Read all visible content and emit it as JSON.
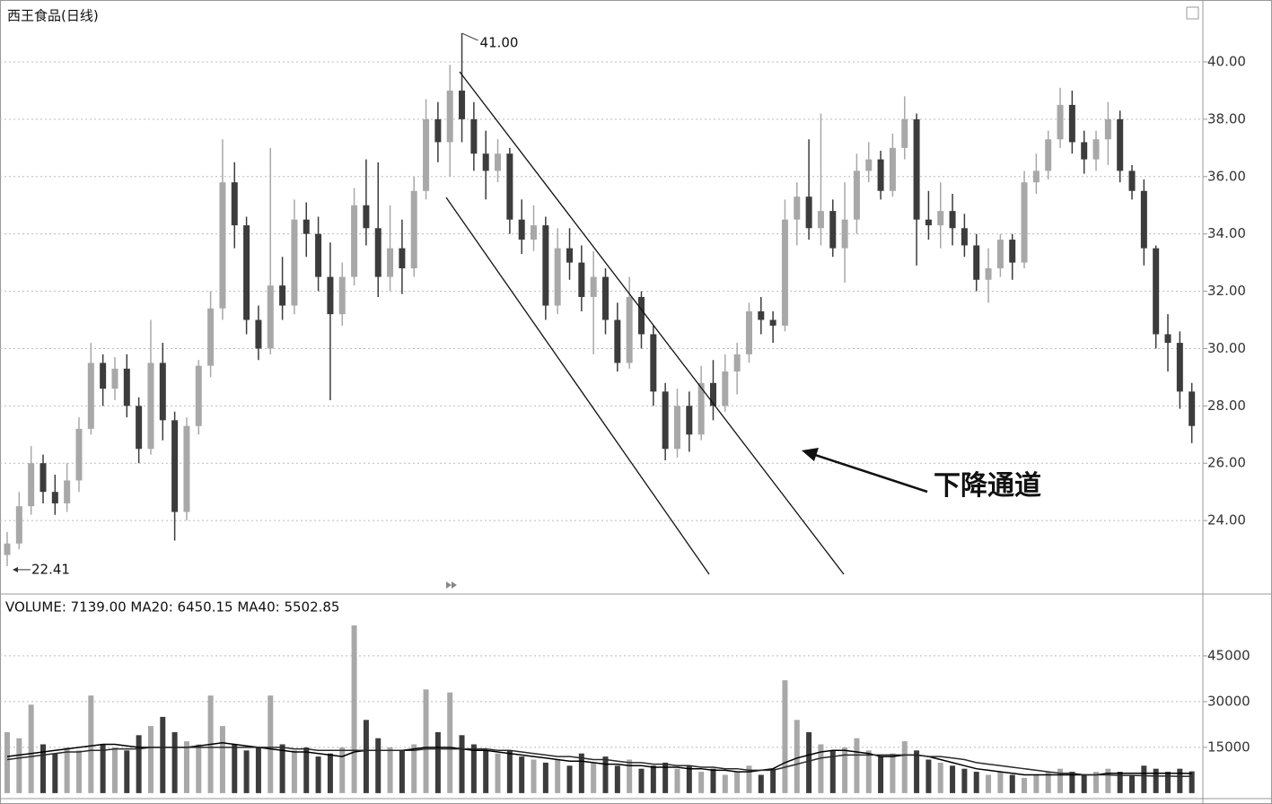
{
  "chart_data": [
    {
      "type": "candlestick",
      "title": "西王食品(日线)",
      "text_annotation": "下降通道",
      "up_color": "#a8a8a8",
      "down_color": "#3c3c3c",
      "grid": true,
      "ylim": [
        21.5,
        42.16
      ],
      "yticks": [
        {
          "value": 24,
          "label": "24.00"
        },
        {
          "value": 26,
          "label": "26.00"
        },
        {
          "value": 28,
          "label": "28.00"
        },
        {
          "value": 30,
          "label": "30.00"
        },
        {
          "value": 32,
          "label": "32.00"
        },
        {
          "value": 34,
          "label": "34.00"
        },
        {
          "value": 36,
          "label": "36.00"
        },
        {
          "value": 38,
          "label": "38.00"
        },
        {
          "value": 40,
          "label": "40.00"
        }
      ],
      "annotations": [
        {
          "value": 41,
          "label": "41.00",
          "on": "high"
        },
        {
          "value": 22.41,
          "label": "22.41",
          "on": "low"
        }
      ],
      "open": [
        22.8,
        23.2,
        24.5,
        26,
        25,
        24.6,
        25.4,
        27.2,
        29.5,
        28.6,
        29.3,
        28,
        26.5,
        29.5,
        27.5,
        24.3,
        27.3,
        29.4,
        31.4,
        35.8,
        34.3,
        31,
        30,
        32.2,
        31.5,
        34.5,
        34,
        32.5,
        31.2,
        32.5,
        35,
        34.2,
        32.5,
        33.5,
        32.8,
        35.5,
        38,
        37.2,
        39,
        38,
        36.8,
        36.2,
        36.8,
        34.5,
        33.8,
        34.3,
        31.5,
        33.5,
        33,
        31.8,
        32.5,
        31,
        29.5,
        31.8,
        30.5,
        28.5,
        26.5,
        28,
        27,
        28.8,
        28,
        29.2,
        29.8,
        31.3,
        31,
        30.8,
        34.5,
        35.3,
        34.2,
        34.8,
        33.5,
        34.5,
        36.2,
        36.6,
        35.5,
        37,
        38,
        34.5,
        34.3,
        34.8,
        34.2,
        33.6,
        32.4,
        32.8,
        33.8,
        33,
        35.8,
        36.2,
        37.3,
        38.5,
        37.2,
        36.6,
        37.3,
        38,
        36.2,
        35.5,
        33.5,
        30.5,
        30.2,
        28.5
      ],
      "high": [
        23.6,
        25,
        26.6,
        26.3,
        25.6,
        26,
        27.6,
        30.2,
        29.8,
        29.7,
        29.8,
        28.3,
        31,
        30.2,
        27.8,
        27.6,
        29.6,
        32,
        37.3,
        36.5,
        34.6,
        31.5,
        37,
        33.2,
        35.2,
        35.1,
        34.6,
        33.7,
        33,
        35.6,
        36.6,
        36.5,
        35,
        34.5,
        36,
        38.7,
        38.6,
        39.9,
        41,
        38.6,
        37.6,
        37.3,
        37,
        35.2,
        35,
        34.6,
        34.2,
        34.2,
        33.6,
        33.4,
        32.8,
        31.6,
        32.5,
        32,
        30.8,
        28.8,
        28.6,
        28.5,
        29.4,
        29.6,
        29.8,
        30.2,
        31.6,
        31.8,
        31.3,
        35.2,
        35.8,
        37.3,
        38.2,
        35.2,
        35.8,
        36.8,
        37.2,
        36.9,
        37.5,
        38.8,
        38.2,
        35.5,
        35.8,
        35.4,
        34.7,
        34,
        33.5,
        34,
        34,
        36.2,
        36.8,
        37.6,
        39.1,
        39,
        37.6,
        37.6,
        38.6,
        38.3,
        36.4,
        35.9,
        33.6,
        31.2,
        30.6,
        28.8
      ],
      "low": [
        22.41,
        23,
        24.2,
        24.6,
        24.2,
        24.3,
        25,
        27,
        28,
        28.2,
        27.6,
        26,
        26.3,
        26.8,
        23.3,
        24,
        27,
        29,
        31,
        33.5,
        30.5,
        29.6,
        29.8,
        31,
        31.2,
        33.2,
        32,
        28.2,
        30.8,
        32.2,
        33.6,
        31.8,
        32,
        31.9,
        32.5,
        35.2,
        36.5,
        36,
        37.2,
        36.2,
        35.2,
        35.8,
        34,
        33.3,
        33.4,
        31,
        31.2,
        32.4,
        31.3,
        29.8,
        30.5,
        29.2,
        29.3,
        30,
        28,
        26.1,
        26.2,
        26.4,
        26.8,
        27.5,
        27.8,
        28.4,
        29.5,
        30.5,
        30.2,
        30.6,
        33.6,
        33.8,
        33.6,
        33.2,
        32.3,
        34,
        35.8,
        35.2,
        35.3,
        36.6,
        32.9,
        33.8,
        33.5,
        33.6,
        33.2,
        32,
        31.6,
        32.5,
        32.4,
        32.8,
        35.4,
        35.9,
        37,
        36.8,
        36.1,
        36.2,
        36.4,
        35.8,
        35.2,
        32.9,
        30,
        29.2,
        27.9,
        26.7
      ],
      "close": [
        23.2,
        24.5,
        26,
        25,
        24.6,
        25.4,
        27.2,
        29.5,
        28.6,
        29.3,
        28,
        26.5,
        29.5,
        27.5,
        24.3,
        27.3,
        29.4,
        31.4,
        35.8,
        34.3,
        31,
        30,
        32.2,
        31.5,
        34.5,
        34,
        32.5,
        31.2,
        32.5,
        35,
        34.2,
        32.5,
        33.5,
        32.8,
        35.5,
        38,
        37.2,
        39,
        38,
        36.8,
        36.2,
        36.8,
        34.5,
        33.8,
        34.3,
        31.5,
        33.5,
        33,
        31.8,
        32.5,
        31,
        29.5,
        31.8,
        30.5,
        28.5,
        26.5,
        28,
        27,
        28.8,
        28,
        29.2,
        29.8,
        31.3,
        31,
        30.8,
        34.5,
        35.3,
        34.2,
        34.8,
        33.5,
        34.5,
        36.2,
        36.6,
        35.5,
        37,
        38,
        34.5,
        34.3,
        34.8,
        34.2,
        33.6,
        32.4,
        32.8,
        33.8,
        33,
        35.8,
        36.2,
        37.3,
        38.5,
        37.2,
        36.6,
        37.3,
        38,
        36.2,
        35.5,
        33.5,
        30.5,
        30.2,
        28.5,
        27.3
      ]
    },
    {
      "type": "volume",
      "legend": "VOLUME: 7139.00  MA20: 6450.15  MA40: 5502.85",
      "grid": true,
      "ylim": [
        -1800,
        64400
      ],
      "yticks": [
        15000,
        30000,
        45000
      ],
      "values": [
        20000,
        18000,
        29000,
        16000,
        13000,
        15000,
        14000,
        32000,
        16000,
        15000,
        14000,
        19000,
        22000,
        25000,
        20000,
        17000,
        16000,
        32000,
        22000,
        16000,
        14000,
        15000,
        32000,
        16000,
        14000,
        15000,
        12000,
        13000,
        15000,
        55000,
        24000,
        18000,
        15000,
        14000,
        16000,
        34000,
        20000,
        33000,
        19000,
        16000,
        14000,
        13000,
        14000,
        12000,
        11000,
        10000,
        11000,
        9000,
        13000,
        10000,
        12000,
        9000,
        11000,
        8000,
        9000,
        10000,
        8000,
        9000,
        7000,
        8000,
        6000,
        7000,
        9000,
        6000,
        8000,
        37000,
        24000,
        20000,
        16000,
        14000,
        15000,
        18000,
        14000,
        12000,
        13000,
        17000,
        14000,
        11000,
        10000,
        9000,
        8000,
        7000,
        6000,
        7000,
        6000,
        5000,
        6000,
        7000,
        8000,
        7000,
        6000,
        7000,
        8000,
        7000,
        6000,
        9000,
        8000,
        7000,
        8000,
        7139
      ],
      "ma_lines": [
        {
          "color": "#000000",
          "values": [
            12000,
            12500,
            13000,
            13500,
            14000,
            14500,
            15000,
            15500,
            16000,
            16000,
            15500,
            15000,
            15000,
            15000,
            15000,
            15000,
            15500,
            16000,
            16500,
            16000,
            15500,
            15000,
            14500,
            14000,
            13500,
            13500,
            13000,
            12500,
            12000,
            13500,
            14000,
            14000,
            14000,
            14000,
            14500,
            15000,
            15000,
            15000,
            14500,
            14000,
            14000,
            13500,
            13000,
            12500,
            12000,
            11500,
            11000,
            10500,
            10500,
            10000,
            9500,
            9500,
            9000,
            9000,
            8500,
            8500,
            8500,
            8000,
            8000,
            7500,
            7500,
            7000,
            7000,
            7500,
            8000,
            10000,
            11500,
            12500,
            13500,
            14000,
            14000,
            13500,
            13000,
            12000,
            12000,
            12500,
            12500,
            12000,
            11000,
            10000,
            9000,
            8000,
            7500,
            7000,
            6500,
            6000,
            6000,
            6000,
            6000,
            6000,
            6000,
            6000,
            6500,
            6500,
            6500,
            6500,
            6500,
            6500,
            6500,
            6450.15
          ]
        },
        {
          "color": "#2a2a2a",
          "values": [
            11000,
            11500,
            12000,
            12500,
            13000,
            13500,
            13500,
            14000,
            14000,
            14500,
            14500,
            14500,
            15000,
            15000,
            15000,
            15000,
            15000,
            15000,
            15000,
            15000,
            15000,
            15000,
            15000,
            15000,
            14500,
            14500,
            14000,
            14000,
            14000,
            14000,
            14000,
            14000,
            14000,
            14000,
            14000,
            14500,
            14500,
            14500,
            14500,
            14500,
            14500,
            14000,
            14000,
            13500,
            13000,
            12500,
            12000,
            12000,
            11500,
            11000,
            11000,
            10500,
            10000,
            10000,
            9500,
            9500,
            9000,
            9000,
            8500,
            8500,
            8000,
            8000,
            7500,
            7500,
            7500,
            8500,
            9500,
            10500,
            11500,
            12000,
            12500,
            12500,
            12500,
            12500,
            12500,
            12500,
            12500,
            12000,
            12000,
            11500,
            11000,
            10000,
            9500,
            9000,
            8500,
            8000,
            7500,
            7000,
            6500,
            6500,
            6000,
            6000,
            6000,
            5800,
            5800,
            5700,
            5600,
            5600,
            5500,
            5502.85
          ]
        }
      ]
    }
  ]
}
